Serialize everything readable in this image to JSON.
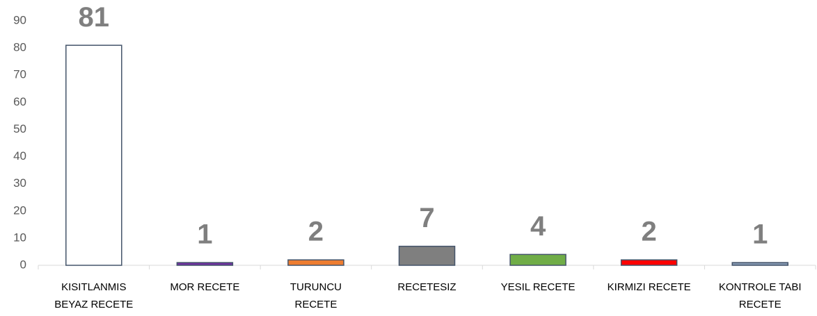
{
  "chart_data": {
    "type": "bar",
    "categories": [
      "KISITLANMIS BEYAZ RECETE",
      "MOR RECETE",
      "TURUNCU RECETE",
      "RECETESIZ",
      "YESIL RECETE",
      "KIRMIZI RECETE",
      "KONTROLE TABI RECETE"
    ],
    "values": [
      81,
      1,
      2,
      7,
      4,
      2,
      1
    ],
    "colors": [
      "#ffffff",
      "#7030a0",
      "#ed7d31",
      "#7f7f7f",
      "#70ad47",
      "#ff0000",
      "#8497b0"
    ],
    "ylim": [
      0,
      90
    ],
    "yticks": [
      0,
      10,
      20,
      30,
      40,
      50,
      60,
      70,
      80,
      90
    ]
  }
}
